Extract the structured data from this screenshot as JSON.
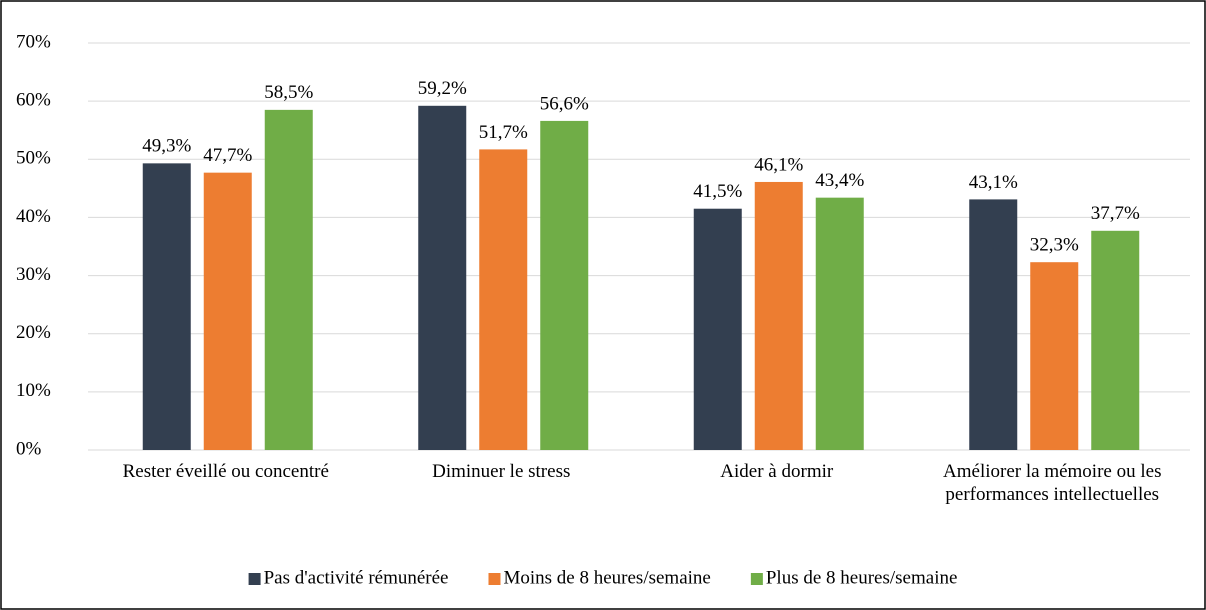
{
  "chart_data": {
    "type": "bar",
    "categories": [
      "Rester éveillé ou concentré",
      "Diminuer le stress",
      "Aider à dormir",
      "Améliorer la mémoire ou les performances intellectuelles"
    ],
    "series": [
      {
        "name": "Pas d'activité rémunérée",
        "color": "#333f50",
        "values": [
          49.3,
          59.2,
          41.5,
          43.1
        ],
        "value_labels": [
          "49,3%",
          "59,2%",
          "41,5%",
          "43,1%"
        ]
      },
      {
        "name": "Moins de 8 heures/semaine",
        "color": "#ed7d31",
        "values": [
          47.7,
          51.7,
          46.1,
          32.3
        ],
        "value_labels": [
          "47,7%",
          "51,7%",
          "46,1%",
          "32,3%"
        ]
      },
      {
        "name": "Plus de 8 heures/semaine",
        "color": "#70ad47",
        "values": [
          58.5,
          56.6,
          43.4,
          37.7
        ],
        "value_labels": [
          "58,5%",
          "56,6%",
          "43,4%",
          "37,7%"
        ]
      }
    ],
    "ylim": [
      0,
      70
    ],
    "yticks": [
      {
        "value": 0,
        "label": "0%"
      },
      {
        "value": 10,
        "label": "10%"
      },
      {
        "value": 20,
        "label": "20%"
      },
      {
        "value": 30,
        "label": "30%"
      },
      {
        "value": 40,
        "label": "40%"
      },
      {
        "value": 50,
        "label": "50%"
      },
      {
        "value": 60,
        "label": "60%"
      },
      {
        "value": 70,
        "label": "70%"
      }
    ],
    "grid": true,
    "legend": "bottom"
  }
}
